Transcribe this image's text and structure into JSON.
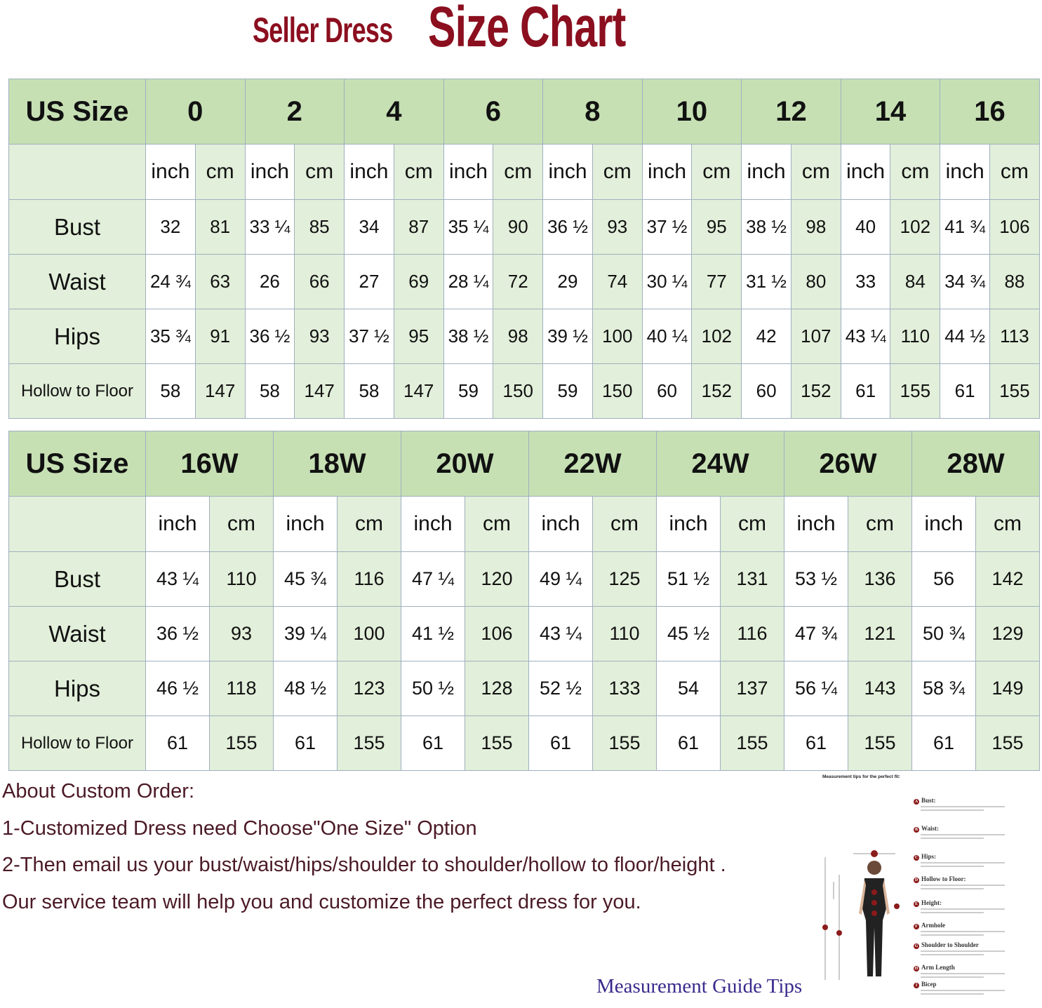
{
  "title": {
    "part1": "Seller Dress",
    "part2": "Size Chart",
    "color": "#8b0f1f"
  },
  "colors": {
    "header_bg": "#c6e0b4",
    "light_bg": "#e2efda",
    "border": "#9fb0bf"
  },
  "tables": [
    {
      "header_label": "US Size",
      "sizes": [
        "0",
        "2",
        "4",
        "6",
        "8",
        "10",
        "12",
        "14",
        "16"
      ],
      "unit_labels": [
        "inch",
        "cm"
      ],
      "rows": [
        {
          "label": "Bust",
          "values": [
            "32",
            "81",
            "33 ¼",
            "85",
            "34",
            "87",
            "35 ¼",
            "90",
            "36 ½",
            "93",
            "37 ½",
            "95",
            "38 ½",
            "98",
            "40",
            "102",
            "41 ¾",
            "106"
          ]
        },
        {
          "label": "Waist",
          "values": [
            "24 ¾",
            "63",
            "26",
            "66",
            "27",
            "69",
            "28 ¼",
            "72",
            "29",
            "74",
            "30 ¼",
            "77",
            "31 ½",
            "80",
            "33",
            "84",
            "34 ¾",
            "88"
          ]
        },
        {
          "label": "Hips",
          "values": [
            "35 ¾",
            "91",
            "36 ½",
            "93",
            "37 ½",
            "95",
            "38 ½",
            "98",
            "39 ½",
            "100",
            "40 ¼",
            "102",
            "42",
            "107",
            "43 ¼",
            "110",
            "44 ½",
            "113"
          ]
        },
        {
          "label": "Hollow to Floor",
          "values": [
            "58",
            "147",
            "58",
            "147",
            "58",
            "147",
            "59",
            "150",
            "59",
            "150",
            "60",
            "152",
            "60",
            "152",
            "61",
            "155",
            "61",
            "155"
          ]
        }
      ]
    },
    {
      "header_label": "US Size",
      "sizes": [
        "16W",
        "18W",
        "20W",
        "22W",
        "24W",
        "26W",
        "28W"
      ],
      "unit_labels": [
        "inch",
        "cm"
      ],
      "rows": [
        {
          "label": "Bust",
          "values": [
            "43 ¼",
            "110",
            "45 ¾",
            "116",
            "47 ¼",
            "120",
            "49 ¼",
            "125",
            "51 ½",
            "131",
            "53 ½",
            "136",
            "56",
            "142"
          ]
        },
        {
          "label": "Waist",
          "values": [
            "36 ½",
            "93",
            "39 ¼",
            "100",
            "41 ½",
            "106",
            "43 ¼",
            "110",
            "45 ½",
            "116",
            "47 ¾",
            "121",
            "50 ¾",
            "129"
          ]
        },
        {
          "label": "Hips",
          "values": [
            "46 ½",
            "118",
            "48 ½",
            "123",
            "50 ½",
            "128",
            "52 ½",
            "133",
            "54",
            "137",
            "56 ¼",
            "143",
            "58 ¾",
            "149"
          ]
        },
        {
          "label": "Hollow to Floor",
          "values": [
            "61",
            "155",
            "61",
            "155",
            "61",
            "155",
            "61",
            "155",
            "61",
            "155",
            "61",
            "155",
            "61",
            "155"
          ]
        }
      ]
    }
  ],
  "custom_order": {
    "heading": "About Custom Order:",
    "lines": [
      "1-Customized Dress need Choose\"One Size\" Option",
      "2-Then email us your bust/waist/hips/shoulder to shoulder/hollow to floor/height .",
      "Our service team will help you and customize the perfect dress for you."
    ]
  },
  "guide": {
    "caption": "Measurement Guide Tips",
    "heading": "Measurement tips for the perfect fit:",
    "items": [
      {
        "letter": "A",
        "label": "Bust:"
      },
      {
        "letter": "B",
        "label": "Waist:"
      },
      {
        "letter": "C",
        "label": "Hips:"
      },
      {
        "letter": "D",
        "label": "Hollow to Floor:"
      },
      {
        "letter": "E",
        "label": "Height:"
      },
      {
        "letter": "F",
        "label": "Armhole"
      },
      {
        "letter": "G",
        "label": "Shoulder to Shoulder"
      },
      {
        "letter": "H",
        "label": "Arm Length"
      },
      {
        "letter": "I",
        "label": "Bicep"
      }
    ]
  }
}
